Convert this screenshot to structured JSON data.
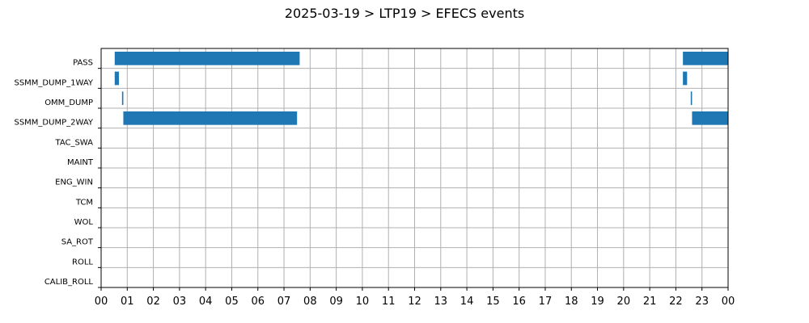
{
  "chart_data": {
    "type": "bar",
    "orientation": "horizontal-timeline",
    "title": "2025-03-19 > LTP19 > EFECS events",
    "xlabel": "",
    "ylabel": "",
    "xlim": [
      0,
      24
    ],
    "grid": true,
    "bar_color": "#1f77b4",
    "grid_color": "#b0b0b0",
    "x_tick_labels": [
      "00",
      "01",
      "02",
      "03",
      "04",
      "05",
      "06",
      "07",
      "08",
      "09",
      "10",
      "11",
      "12",
      "13",
      "14",
      "15",
      "16",
      "17",
      "18",
      "19",
      "20",
      "21",
      "22",
      "23",
      "00"
    ],
    "categories": [
      "PASS",
      "SSMM_DUMP_1WAY",
      "OMM_DUMP",
      "SSMM_DUMP_2WAY",
      "TAC_SWA",
      "MAINT",
      "ENG_WIN",
      "TCM",
      "WOL",
      "SA_ROT",
      "ROLL",
      "CALIB_ROLL"
    ],
    "events": [
      {
        "category": "PASS",
        "start": 0.52,
        "end": 7.6
      },
      {
        "category": "PASS",
        "start": 22.27,
        "end": 24.0
      },
      {
        "category": "SSMM_DUMP_1WAY",
        "start": 0.52,
        "end": 0.68
      },
      {
        "category": "SSMM_DUMP_1WAY",
        "start": 22.27,
        "end": 22.43
      },
      {
        "category": "OMM_DUMP",
        "start": 0.8,
        "end": 0.85
      },
      {
        "category": "OMM_DUMP",
        "start": 22.57,
        "end": 22.62
      },
      {
        "category": "SSMM_DUMP_2WAY",
        "start": 0.85,
        "end": 7.5
      },
      {
        "category": "SSMM_DUMP_2WAY",
        "start": 22.62,
        "end": 24.0
      }
    ]
  }
}
